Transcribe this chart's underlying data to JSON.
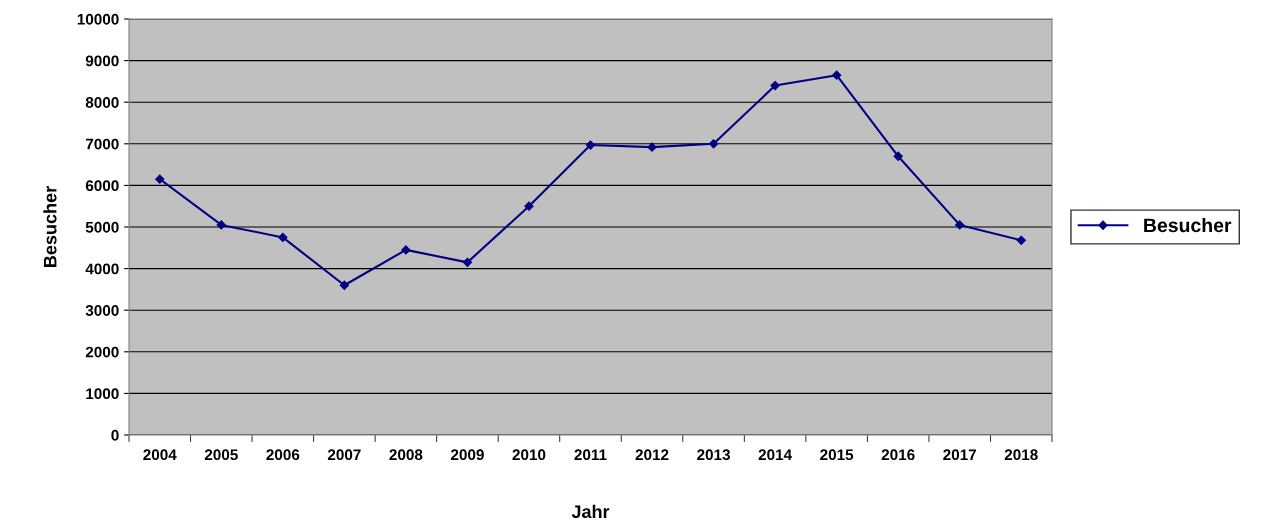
{
  "chart_data": {
    "type": "line",
    "xlabel": "Jahr",
    "ylabel": "Besucher",
    "categories": [
      "2004",
      "2005",
      "2006",
      "2007",
      "2008",
      "2009",
      "2010",
      "2011",
      "2012",
      "2013",
      "2014",
      "2015",
      "2016",
      "2017",
      "2018"
    ],
    "series": [
      {
        "name": "Besucher",
        "color": "#000080",
        "values": [
          6150,
          5050,
          4750,
          3600,
          4450,
          4150,
          5500,
          6970,
          6920,
          7000,
          8400,
          8650,
          6700,
          5050,
          4680
        ]
      }
    ],
    "ylim": [
      0,
      10000
    ],
    "yticks": [
      0,
      1000,
      2000,
      3000,
      4000,
      5000,
      6000,
      7000,
      8000,
      9000,
      10000
    ],
    "grid": "y",
    "legend": "right",
    "marker": "diamond",
    "line_style": "solid"
  }
}
